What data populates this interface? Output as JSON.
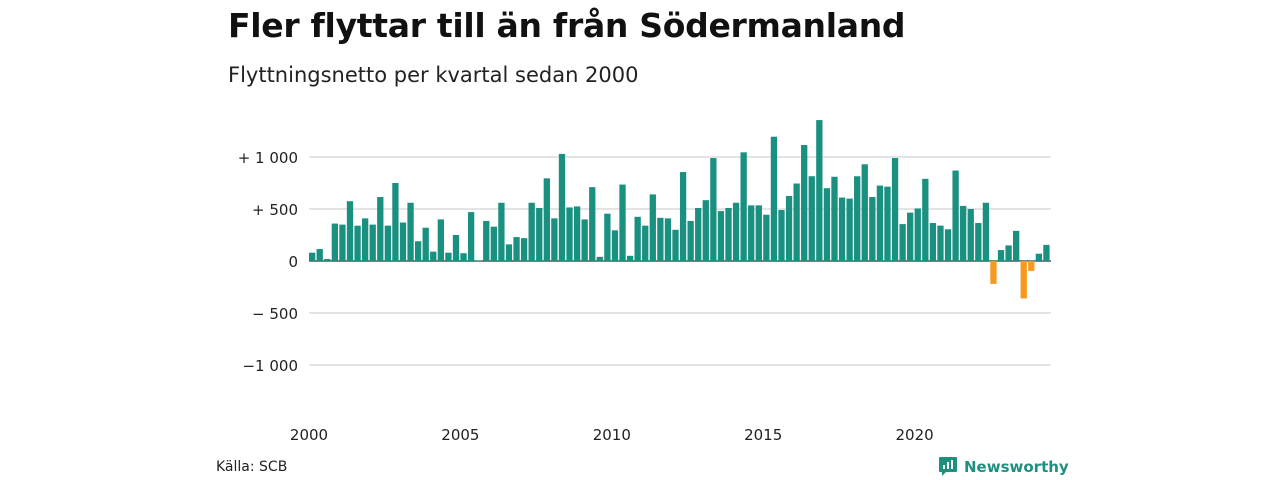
{
  "header": {
    "title": "Fler flyttar till än från Södermanland",
    "subtitle": "Flyttningsnetto per kvartal sedan 2000"
  },
  "footer": {
    "source": "Källa: SCB",
    "brand": "Newsworthy",
    "brand_icon": "bar-chart-logo-icon"
  },
  "colors": {
    "positive": "#1a9080",
    "negative": "#f49a1f",
    "grid": "#dcdcdc",
    "brand": "#1e9080"
  },
  "chart_data": {
    "type": "bar",
    "title": "Fler flyttar till än från Södermanland",
    "subtitle": "Flyttningsnetto per kvartal sedan 2000",
    "xlabel": "",
    "ylabel": "",
    "ylim": [
      -1300,
      1400
    ],
    "grid": true,
    "y_ticks": [
      {
        "value": 1000,
        "label": "+ 1 000"
      },
      {
        "value": 500,
        "label": "+   500"
      },
      {
        "value": 0,
        "label": "0"
      },
      {
        "value": -500,
        "label": "−  500"
      },
      {
        "value": -1000,
        "label": "−1 000"
      }
    ],
    "x_ticks": [
      {
        "year": 2000,
        "label": "2000"
      },
      {
        "year": 2005,
        "label": "2005"
      },
      {
        "year": 2010,
        "label": "2010"
      },
      {
        "year": 2015,
        "label": "2015"
      },
      {
        "year": 2020,
        "label": "2020"
      }
    ],
    "start_year": 2000,
    "values": [
      80,
      115,
      20,
      360,
      350,
      575,
      340,
      410,
      350,
      615,
      340,
      750,
      370,
      560,
      190,
      320,
      90,
      400,
      80,
      250,
      75,
      470,
      5,
      385,
      330,
      560,
      160,
      230,
      220,
      560,
      510,
      795,
      410,
      1030,
      515,
      525,
      400,
      710,
      40,
      455,
      295,
      735,
      50,
      425,
      340,
      640,
      415,
      410,
      300,
      855,
      385,
      510,
      585,
      990,
      480,
      510,
      560,
      1045,
      535,
      535,
      445,
      1195,
      490,
      625,
      745,
      1115,
      815,
      1355,
      700,
      810,
      610,
      600,
      815,
      930,
      615,
      725,
      715,
      990,
      355,
      465,
      505,
      790,
      365,
      340,
      305,
      870,
      530,
      500,
      365,
      560,
      -220,
      105,
      150,
      290,
      -360,
      -95,
      70,
      155
    ]
  }
}
